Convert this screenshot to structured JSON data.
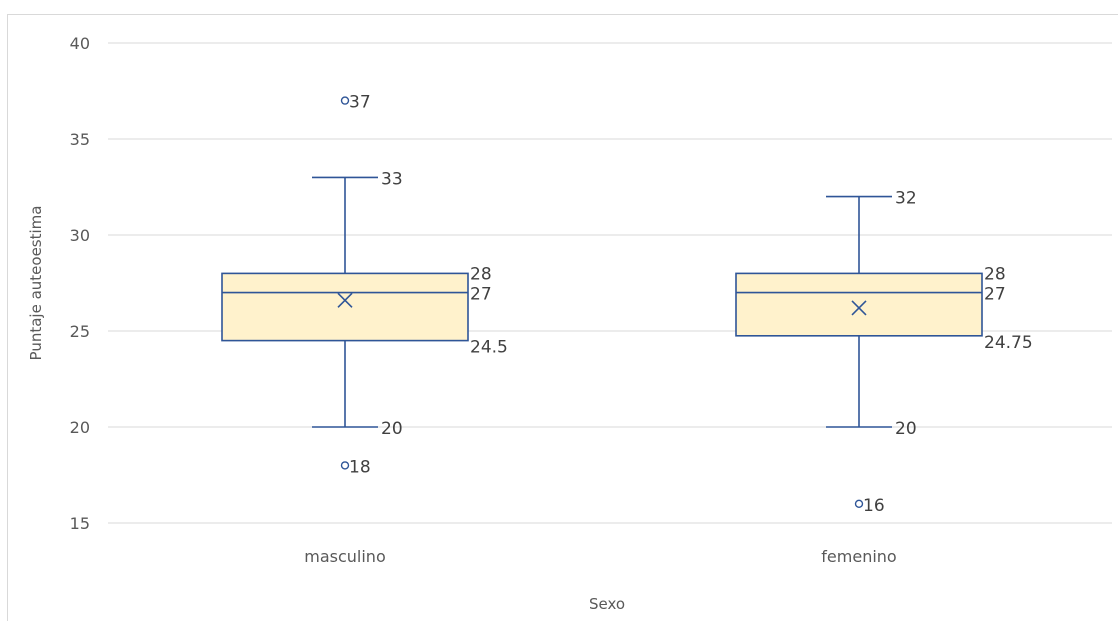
{
  "chart_data": {
    "type": "box",
    "xlabel": "Sexo",
    "ylabel": "Puntaje auteoestima",
    "ylim": [
      15,
      40
    ],
    "y_ticks": [
      "15",
      "20",
      "25",
      "30",
      "35",
      "40"
    ],
    "grid": true,
    "categories": [
      "masculino",
      "femenino"
    ],
    "boxes": [
      {
        "category": "masculino",
        "min": 20,
        "q1": 24.5,
        "median": 27,
        "q3": 28,
        "max": 33,
        "mean": 26.6,
        "outliers": [
          37,
          18
        ],
        "labels": {
          "max": "33",
          "q3": "28",
          "median": "27",
          "q1": "24.5",
          "min": "20",
          "outliers": [
            "37",
            "18"
          ]
        }
      },
      {
        "category": "femenino",
        "min": 20,
        "q1": 24.75,
        "median": 27,
        "q3": 28,
        "max": 32,
        "mean": 26.2,
        "outliers": [
          16
        ],
        "labels": {
          "max": "32",
          "q3": "28",
          "median": "27",
          "q1": "24.75",
          "min": "20",
          "outliers": [
            "16"
          ]
        }
      }
    ],
    "colors": {
      "box_fill": "#fff2cc",
      "box_stroke": "#2f5597",
      "grid": "#d9d9d9",
      "text": "#595959"
    }
  }
}
